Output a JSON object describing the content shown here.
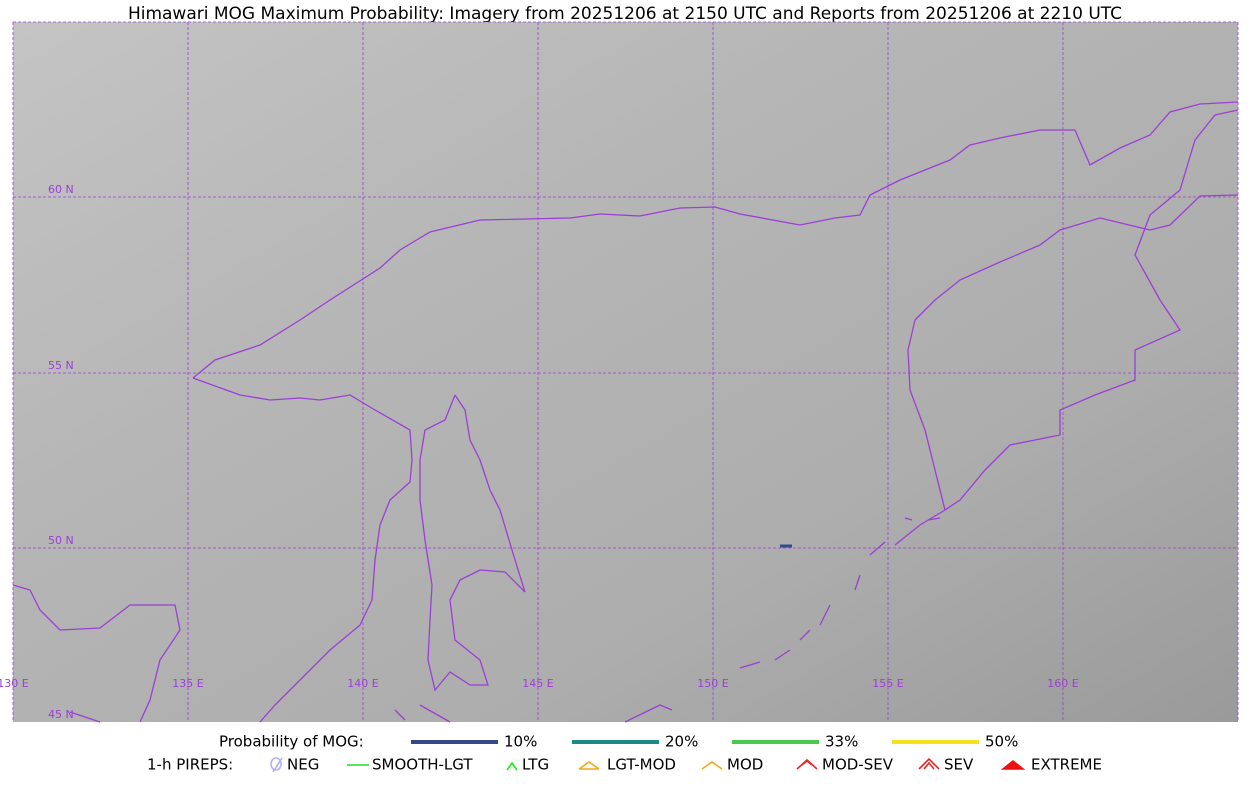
{
  "title": "Himawari MOG Maximum Probability: Imagery from 20251206 at 2150 UTC and Reports from 20251206 at 2210 UTC",
  "map": {
    "lat_labels": [
      "60 N",
      "55 N",
      "50 N",
      "45 N"
    ],
    "lon_labels": [
      "130 E",
      "135 E",
      "140 E",
      "145 E",
      "150 E",
      "155 E",
      "160 E"
    ]
  },
  "legend": {
    "probability": {
      "label": "Probability of MOG:",
      "items": [
        {
          "label": "10%",
          "color": "#34488c"
        },
        {
          "label": "20%",
          "color": "#1b8a80"
        },
        {
          "label": "33%",
          "color": "#4cc752"
        },
        {
          "label": "50%",
          "color": "#f7e11a"
        }
      ]
    },
    "pireps": {
      "label": "1-h PIREPS:",
      "items": [
        {
          "label": "NEG",
          "color": "#b0b0ff"
        },
        {
          "label": "SMOOTH-LGT",
          "color": "#22dd22"
        },
        {
          "label": "LTG",
          "color": "#11ee11"
        },
        {
          "label": "LGT-MOD",
          "color": "#f0a818"
        },
        {
          "label": "MOD",
          "color": "#f0a818"
        },
        {
          "label": "MOD-SEV",
          "color": "#ee2222"
        },
        {
          "label": "SEV",
          "color": "#ee2222"
        },
        {
          "label": "EXTREME",
          "color": "#ee1111"
        }
      ]
    }
  }
}
